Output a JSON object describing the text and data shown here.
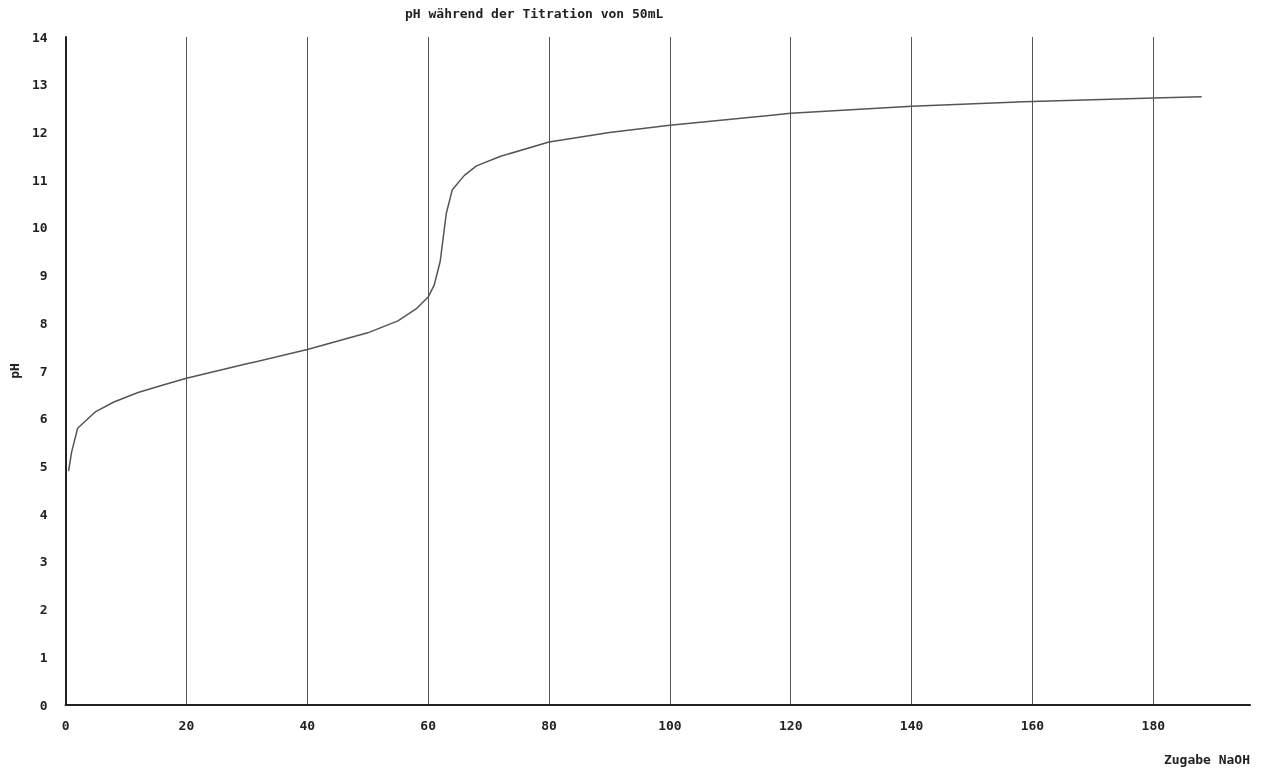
{
  "chart_data": {
    "type": "line",
    "title": "pH während der Titration von 50mL",
    "xlabel": "Zugabe NaOH",
    "ylabel": "pH",
    "x": [
      0.5,
      1,
      2,
      5,
      8,
      12,
      16,
      20,
      30,
      40,
      50,
      55,
      58,
      60,
      61,
      62,
      62.5,
      63,
      64,
      66,
      68,
      72,
      80,
      90,
      100,
      120,
      140,
      160,
      180,
      188
    ],
    "series": [
      {
        "color": "#555555",
        "values": [
          4.9,
          5.3,
          5.8,
          6.15,
          6.35,
          6.55,
          6.7,
          6.85,
          7.15,
          7.45,
          7.8,
          8.05,
          8.3,
          8.55,
          8.8,
          9.3,
          9.8,
          10.3,
          10.8,
          11.1,
          11.3,
          11.5,
          11.8,
          12.0,
          12.15,
          12.4,
          12.55,
          12.65,
          12.72,
          12.75
        ]
      }
    ],
    "xlim": [
      0,
      196
    ],
    "xticks": [
      0,
      20,
      40,
      60,
      80,
      100,
      120,
      140,
      160,
      180
    ],
    "ylim": [
      0,
      14
    ],
    "yticks": [
      0,
      1,
      2,
      3,
      4,
      5,
      6,
      7,
      8,
      9,
      10,
      11,
      12,
      13,
      14
    ],
    "grid": "x",
    "marker": "none",
    "line_style": "solid"
  }
}
